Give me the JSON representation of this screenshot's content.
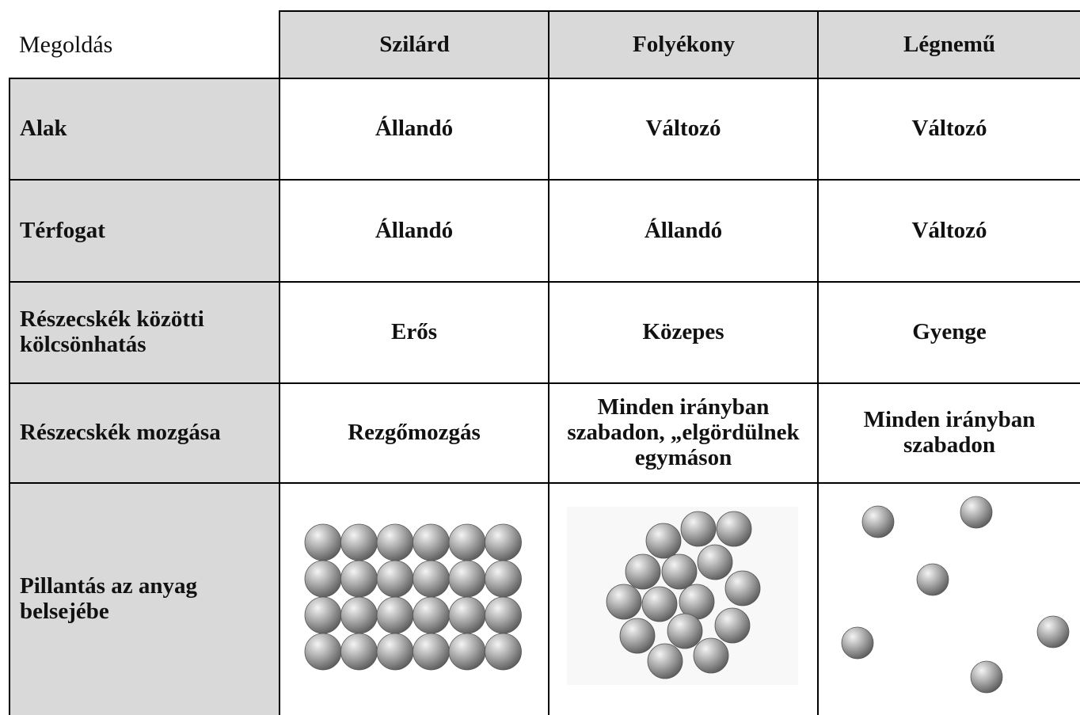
{
  "header": {
    "title": "Megoldás"
  },
  "table": {
    "columns": [
      "Szilárd",
      "Folyékony",
      "Légnemű"
    ],
    "rows": [
      {
        "label": "Alak",
        "cells": [
          "Állandó",
          "Változó",
          "Változó"
        ]
      },
      {
        "label": "Térfogat",
        "cells": [
          "Állandó",
          "Állandó",
          "Változó"
        ]
      },
      {
        "label": "Részecskék közötti kölcsönhatás",
        "cells": [
          "Erős",
          "Közepes",
          "Gyenge"
        ]
      },
      {
        "label": "Részecskék mozgása",
        "cells": [
          "Rezgőmozgás",
          "Minden irányban szabadon, „elgördülnek egymáson",
          "Minden irányban szabadon"
        ]
      },
      {
        "label": "Pillantás az anyag belsejébe"
      }
    ]
  }
}
